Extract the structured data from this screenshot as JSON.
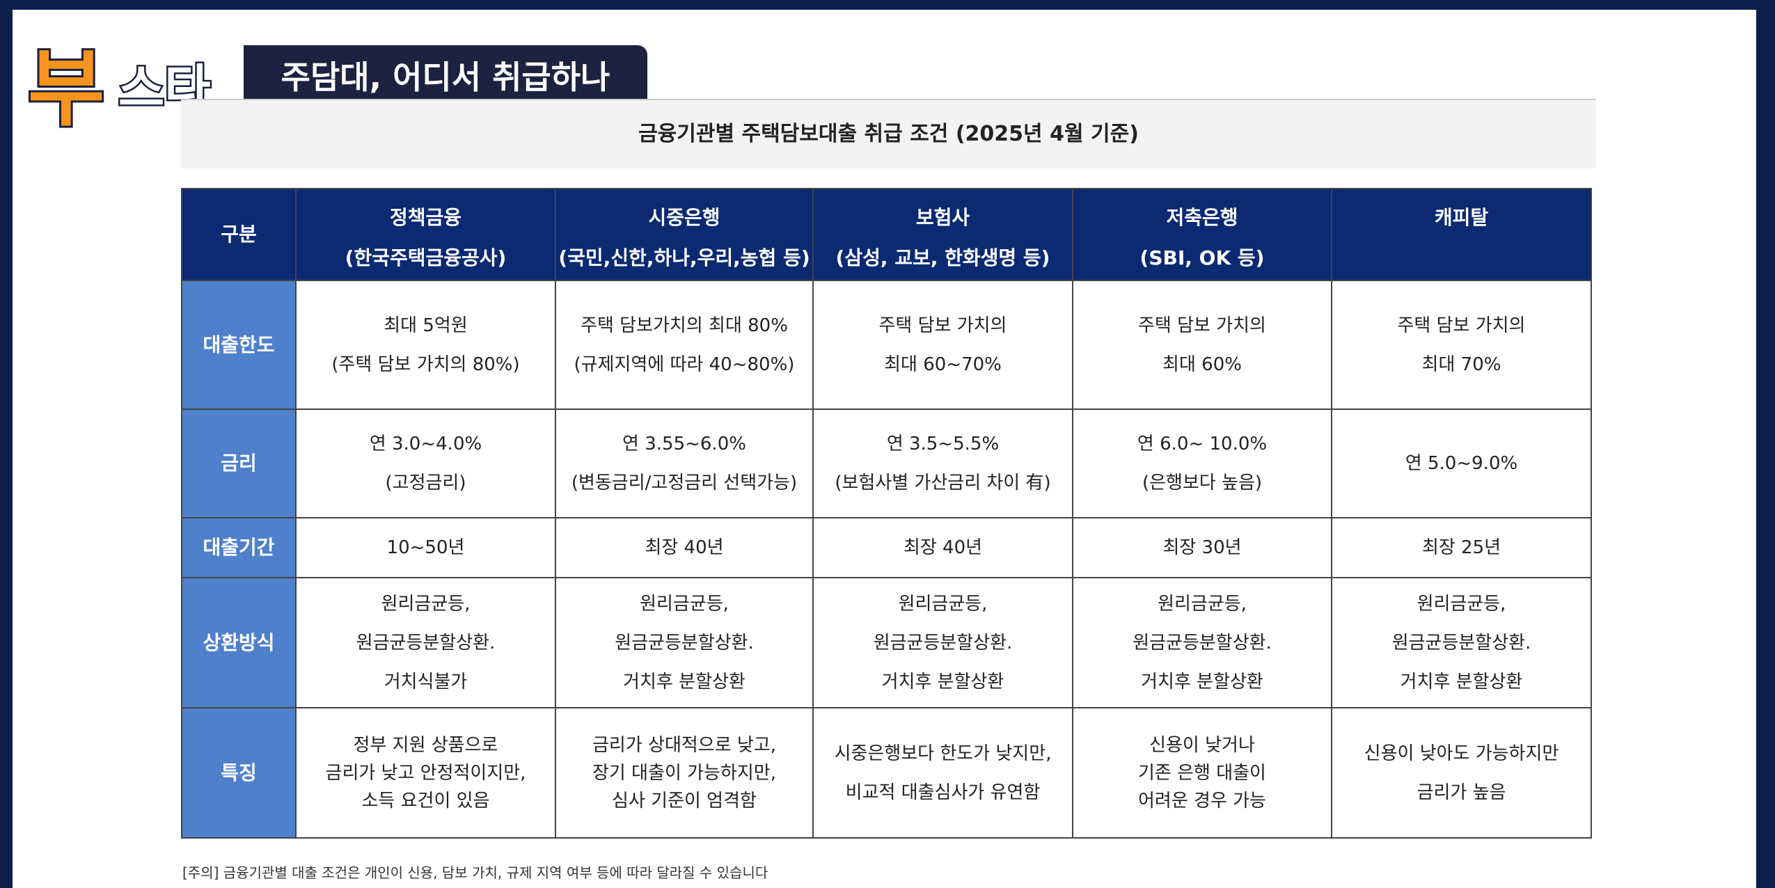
{
  "header": {
    "logo": [
      "부",
      "스타"
    ],
    "title": "주담대, 어디서 취급하나"
  },
  "table": {
    "title": "금융기관별 주택담보대출 취급 조건 (2025년 4월 기준)",
    "columns": [
      [
        "구분"
      ],
      [
        "정책금융",
        "(한국주택금융공사)"
      ],
      [
        "시중은행",
        "(국민,신한,하나,우리,농협 등)"
      ],
      [
        "보험사",
        "(삼성, 교보, 한화생명 등)"
      ],
      [
        "저축은행",
        "(SBI, OK 등)"
      ],
      [
        "캐피탈"
      ]
    ],
    "rows": [
      {
        "label": "대출한도",
        "cells": [
          [
            "최대 5억원",
            "(주택 담보 가치의 80%)"
          ],
          [
            "주택 담보가치의 최대 80%",
            "(규제지역에 따라 40~80%)"
          ],
          [
            "주택 담보 가치의",
            "최대 60~70%"
          ],
          [
            "주택 담보 가치의",
            "최대 60%"
          ],
          [
            "주택 담보 가치의",
            "최대 70%"
          ]
        ]
      },
      {
        "label": "금리",
        "cells": [
          [
            "연 3.0~4.0%",
            "(고정금리)"
          ],
          [
            "연 3.55~6.0%",
            "(변동금리/고정금리 선택가능)"
          ],
          [
            "연 3.5~5.5%",
            "(보험사별 가산금리 차이 有)"
          ],
          [
            "연 6.0~ 10.0%",
            "(은행보다 높음)"
          ],
          [
            "연 5.0~9.0%"
          ]
        ]
      },
      {
        "label": "대출기간",
        "cells": [
          [
            "10~50년"
          ],
          [
            "최장 40년"
          ],
          [
            "최장 40년"
          ],
          [
            "최장 30년"
          ],
          [
            "최장 25년"
          ]
        ]
      },
      {
        "label": "상환방식",
        "cells": [
          [
            "원리금균등,",
            "원금균등분할상환.",
            "거치식불가"
          ],
          [
            "원리금균등,",
            "원금균등분할상환.",
            "거치후 분할상환"
          ],
          [
            "원리금균등,",
            "원금균등분할상환.",
            "거치후 분할상환"
          ],
          [
            "원리금균등,",
            "원금균등분할상환.",
            "거치후 분할상환"
          ],
          [
            "원리금균등,",
            "원금균등분할상환.",
            "거치후 분할상환"
          ]
        ]
      },
      {
        "label": "특징",
        "cells": [
          [
            "정부 지원 상품으로",
            "금리가 낮고 안정적이지만,",
            "소득 요건이 있음"
          ],
          [
            "금리가 상대적으로 낮고,",
            "장기 대출이 가능하지만,",
            "심사 기준이 엄격함"
          ],
          [
            "시중은행보다 한도가 낮지만,",
            "비교적 대출심사가 유연함"
          ],
          [
            "신용이 낮거나",
            "기존 은행 대출이",
            "어려운 경우 가능"
          ],
          [
            "신용이 낮아도 가능하지만",
            "금리가 높음"
          ]
        ]
      }
    ]
  },
  "note": "[주의] 금융기관별 대출 조건은 개인이 신용, 담보 가치, 규제 지역 여부 등에 따라 달라질 수 있습니다"
}
